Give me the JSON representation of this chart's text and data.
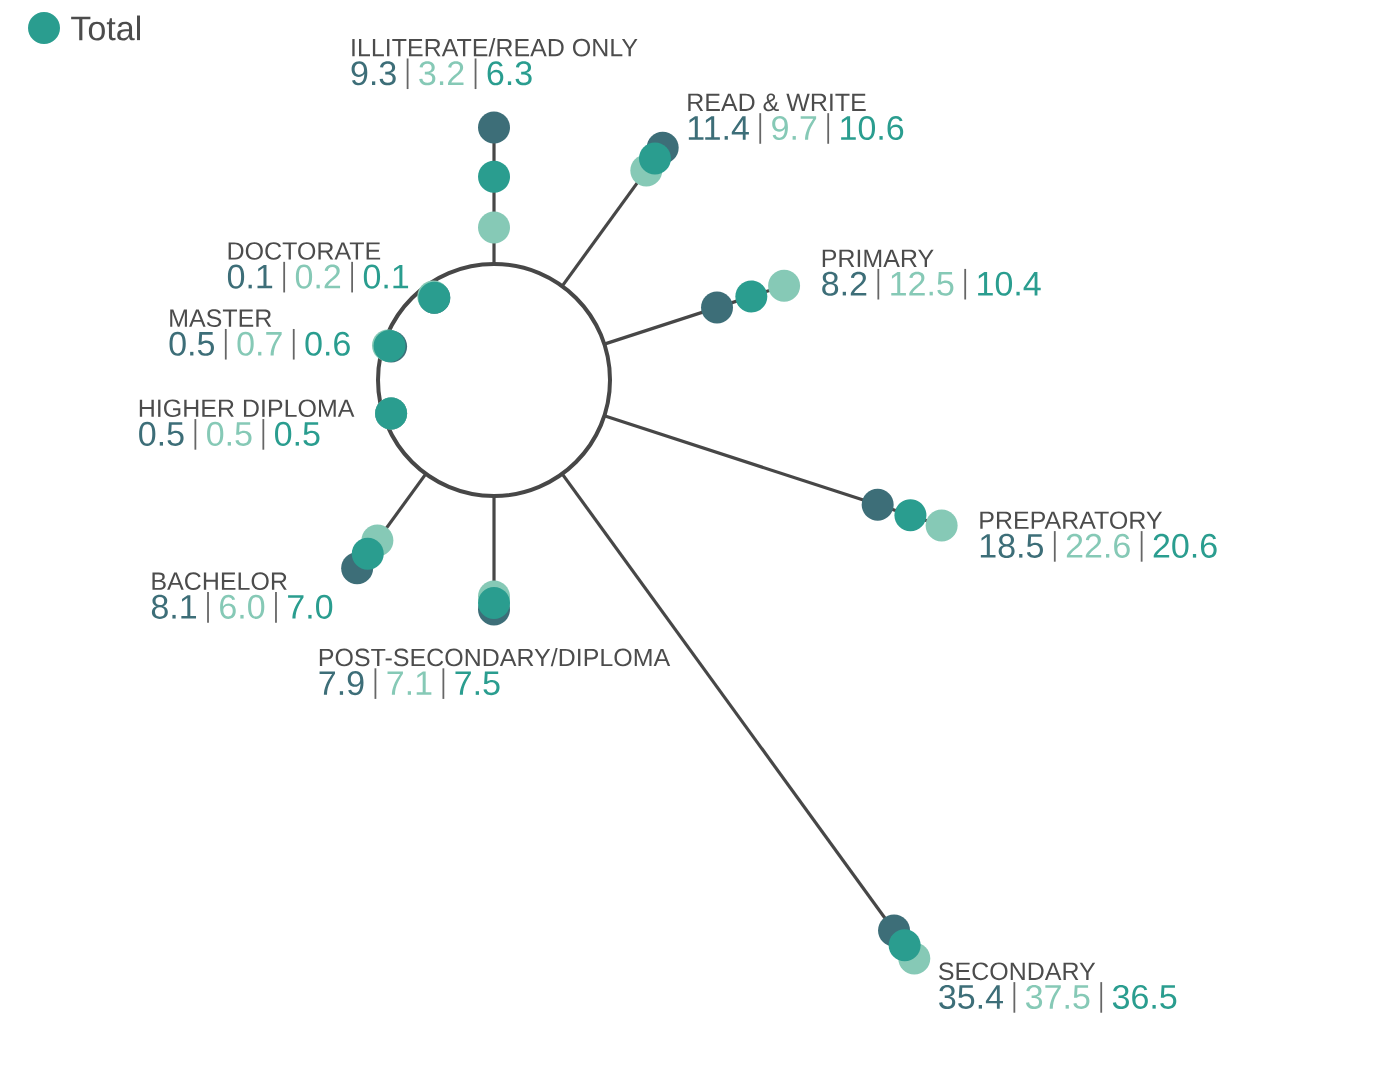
{
  "chart_data": {
    "type": "other",
    "categories": [
      "ILLITERATE/READ ONLY",
      "READ & WRITE",
      "PRIMARY",
      "PREPARATORY",
      "SECONDARY",
      "POST-SECONDARY/DIPLOMA",
      "BACHELOR",
      "HIGHER DIPLOMA",
      "MASTER",
      "DOCTORATE"
    ],
    "series": [
      {
        "color": "#3d6e78",
        "values": [
          9.3,
          11.4,
          8.2,
          18.5,
          35.4,
          7.9,
          8.1,
          0.5,
          0.5,
          0.1
        ],
        "value_labels": [
          "9.3",
          "11.4",
          "8.2",
          "18.5",
          "35.4",
          "7.9",
          "8.1",
          "0.5",
          "0.5",
          "0.1"
        ]
      },
      {
        "color": "#86c9b6",
        "values": [
          3.2,
          9.7,
          12.5,
          22.6,
          37.5,
          7.1,
          6.0,
          0.5,
          0.7,
          0.2
        ],
        "value_labels": [
          "3.2",
          "9.7",
          "12.5",
          "22.6",
          "37.5",
          "7.1",
          "6.0",
          "0.5",
          "0.7",
          "0.2"
        ]
      },
      {
        "name": "Total",
        "color": "#2a9d8f",
        "values": [
          6.3,
          10.6,
          10.4,
          20.6,
          36.5,
          7.5,
          7.0,
          0.5,
          0.6,
          0.1
        ],
        "value_labels": [
          "6.3",
          "10.6",
          "10.4",
          "20.6",
          "36.5",
          "7.5",
          "7.0",
          "0.5",
          "0.6",
          "0.1"
        ]
      }
    ],
    "legend": "top left"
  }
}
